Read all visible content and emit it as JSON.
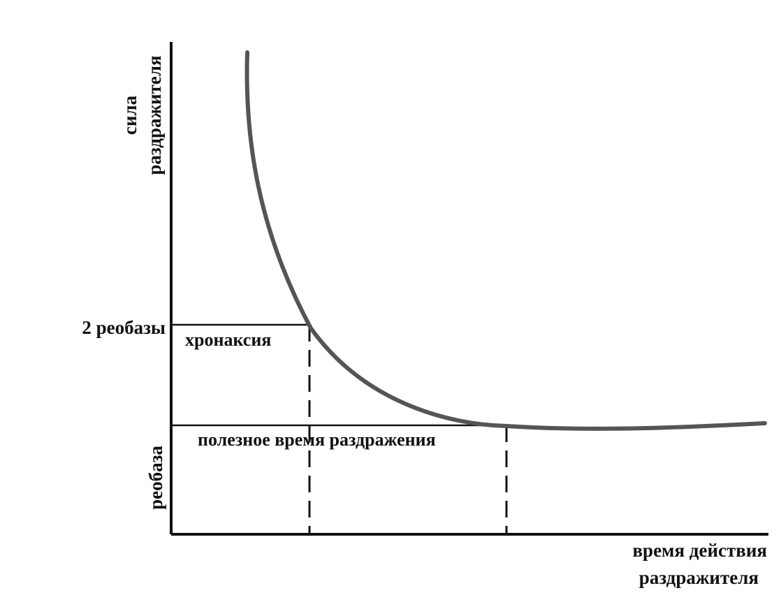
{
  "y_axis_label": [
    "сила",
    "раздражителя"
  ],
  "x_axis_label": [
    "время действия",
    "раздражителя"
  ],
  "rheobase_label": "реобаза",
  "double_rheobase_label": "2 реобазы",
  "chronaxie_label": "хронаксия",
  "useful_time_label": "полезное время раздражения",
  "colors": {
    "ink": "#111111",
    "curve": "#555555",
    "background": "#ffffff"
  }
}
